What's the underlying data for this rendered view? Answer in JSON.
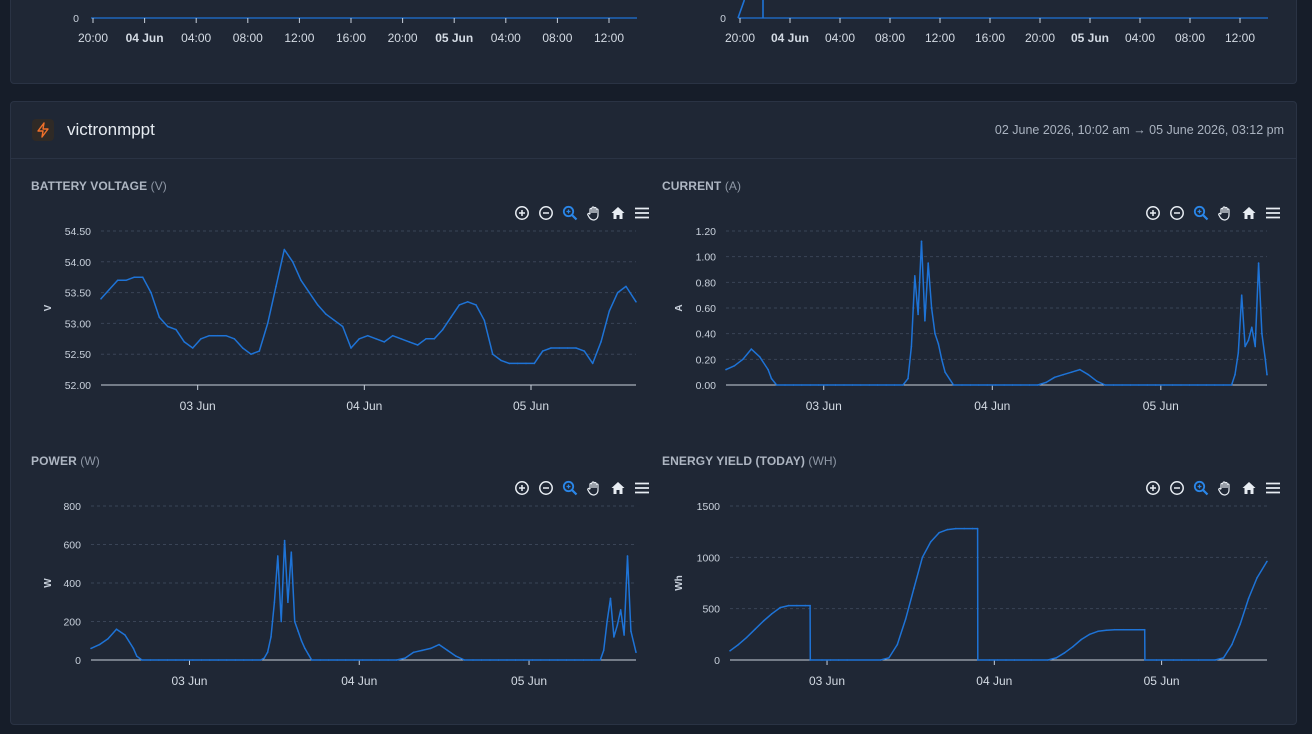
{
  "top_panels": {
    "left": {
      "y_tick": "0",
      "x_ticks": [
        "20:00",
        "04 Jun",
        "04:00",
        "08:00",
        "12:00",
        "16:00",
        "20:00",
        "05 Jun",
        "04:00",
        "08:00",
        "12:00"
      ],
      "bold_ticks": [
        "04 Jun",
        "05 Jun"
      ]
    },
    "right": {
      "y_tick": "0",
      "x_ticks": [
        "20:00",
        "04 Jun",
        "04:00",
        "08:00",
        "12:00",
        "16:00",
        "20:00",
        "05 Jun",
        "04:00",
        "08:00",
        "12:00"
      ],
      "bold_ticks": [
        "04 Jun",
        "05 Jun"
      ]
    }
  },
  "device": {
    "name": "victronmppt",
    "icon": "lightning-bolt-icon",
    "icon_color": "#f0702a",
    "time_range": "02 June 2026, 10:02 am → 05 June 2026, 03:12 pm"
  },
  "toolbar_icons": [
    "zoom-in-icon",
    "zoom-out-icon",
    "selection-zoom-icon",
    "pan-hand-icon",
    "reset-home-icon",
    "menu-icon"
  ],
  "accent_color": "#1e73d6",
  "charts": {
    "voltage": {
      "title": "BATTERY VOLTAGE",
      "unit": "(V)"
    },
    "current": {
      "title": "CURRENT",
      "unit": "(A)"
    },
    "power": {
      "title": "POWER",
      "unit": "(W)"
    },
    "energy": {
      "title": "ENERGY YIELD (TODAY)",
      "unit": "(WH)"
    }
  },
  "chart_data": [
    {
      "id": "voltage",
      "type": "line",
      "title": "BATTERY VOLTAGE (V)",
      "ylabel": "V",
      "ylim": [
        52.0,
        54.5
      ],
      "yticks": [
        "52.00",
        "52.50",
        "53.00",
        "53.50",
        "54.00",
        "54.50"
      ],
      "xlim": [
        0,
        3.21
      ],
      "xticks": [
        {
          "x": 0.58,
          "label": "03 Jun"
        },
        {
          "x": 1.58,
          "label": "04 Jun"
        },
        {
          "x": 2.58,
          "label": "05 Jun"
        }
      ],
      "grid": true,
      "x": [
        0.0,
        0.05,
        0.1,
        0.15,
        0.2,
        0.25,
        0.3,
        0.35,
        0.4,
        0.45,
        0.5,
        0.55,
        0.6,
        0.65,
        0.7,
        0.75,
        0.8,
        0.85,
        0.9,
        0.95,
        1.0,
        1.05,
        1.1,
        1.15,
        1.2,
        1.25,
        1.3,
        1.35,
        1.4,
        1.45,
        1.5,
        1.55,
        1.6,
        1.65,
        1.7,
        1.75,
        1.8,
        1.85,
        1.9,
        1.95,
        2.0,
        2.05,
        2.1,
        2.15,
        2.2,
        2.25,
        2.3,
        2.35,
        2.4,
        2.45,
        2.5,
        2.55,
        2.6,
        2.65,
        2.7,
        2.75,
        2.8,
        2.85,
        2.9,
        2.95,
        3.0,
        3.05,
        3.1,
        3.15,
        3.21
      ],
      "y": [
        53.4,
        53.55,
        53.7,
        53.7,
        53.75,
        53.75,
        53.5,
        53.1,
        52.95,
        52.9,
        52.7,
        52.6,
        52.75,
        52.8,
        52.8,
        52.8,
        52.75,
        52.6,
        52.5,
        52.55,
        53.0,
        53.6,
        54.2,
        54.0,
        53.7,
        53.5,
        53.3,
        53.15,
        53.05,
        52.95,
        52.6,
        52.75,
        52.8,
        52.75,
        52.7,
        52.8,
        52.75,
        52.7,
        52.65,
        52.75,
        52.75,
        52.9,
        53.1,
        53.3,
        53.35,
        53.3,
        53.05,
        52.5,
        52.4,
        52.35,
        52.35,
        52.35,
        52.35,
        52.55,
        52.6,
        52.6,
        52.6,
        52.6,
        52.55,
        52.35,
        52.7,
        53.2,
        53.5,
        53.6,
        53.35
      ]
    },
    {
      "id": "current",
      "type": "line",
      "title": "CURRENT (A)",
      "ylabel": "A",
      "ylim": [
        0,
        1.2
      ],
      "yticks": [
        "0.00",
        "0.20",
        "0.40",
        "0.60",
        "0.80",
        "1.00",
        "1.20"
      ],
      "xlim": [
        0,
        3.21
      ],
      "xticks": [
        {
          "x": 0.58,
          "label": "03 Jun"
        },
        {
          "x": 1.58,
          "label": "04 Jun"
        },
        {
          "x": 2.58,
          "label": "05 Jun"
        }
      ],
      "grid": true,
      "x": [
        0.0,
        0.05,
        0.1,
        0.15,
        0.2,
        0.25,
        0.27,
        0.3,
        0.35,
        0.4,
        0.45,
        0.5,
        0.55,
        0.6,
        0.65,
        0.7,
        0.75,
        0.8,
        0.85,
        0.9,
        0.95,
        1.0,
        1.05,
        1.08,
        1.1,
        1.12,
        1.14,
        1.16,
        1.18,
        1.2,
        1.22,
        1.24,
        1.26,
        1.28,
        1.3,
        1.35,
        1.4,
        1.45,
        1.5,
        1.55,
        1.6,
        1.65,
        1.7,
        1.75,
        1.8,
        1.85,
        1.9,
        1.95,
        2.0,
        2.05,
        2.1,
        2.15,
        2.2,
        2.25,
        2.3,
        2.35,
        2.4,
        2.45,
        2.5,
        2.55,
        2.6,
        2.65,
        2.7,
        2.75,
        2.8,
        2.85,
        2.9,
        2.95,
        3.0,
        3.02,
        3.04,
        3.06,
        3.08,
        3.1,
        3.12,
        3.14,
        3.16,
        3.18,
        3.2,
        3.21
      ],
      "y": [
        0.12,
        0.15,
        0.2,
        0.28,
        0.22,
        0.12,
        0.05,
        0.0,
        0.0,
        0.0,
        0.0,
        0.0,
        0.0,
        0.0,
        0.0,
        0.0,
        0.0,
        0.0,
        0.0,
        0.0,
        0.0,
        0.0,
        0.0,
        0.05,
        0.3,
        0.85,
        0.55,
        1.12,
        0.5,
        0.95,
        0.6,
        0.4,
        0.32,
        0.2,
        0.1,
        0.0,
        0.0,
        0.0,
        0.0,
        0.0,
        0.0,
        0.0,
        0.0,
        0.0,
        0.0,
        0.0,
        0.02,
        0.06,
        0.08,
        0.1,
        0.12,
        0.08,
        0.03,
        0.0,
        0.0,
        0.0,
        0.0,
        0.0,
        0.0,
        0.0,
        0.0,
        0.0,
        0.0,
        0.0,
        0.0,
        0.0,
        0.0,
        0.0,
        0.0,
        0.08,
        0.25,
        0.7,
        0.3,
        0.35,
        0.45,
        0.3,
        0.95,
        0.4,
        0.2,
        0.08
      ]
    },
    {
      "id": "power",
      "type": "line",
      "title": "POWER (W)",
      "ylabel": "W",
      "ylim": [
        0,
        800
      ],
      "yticks": [
        "0",
        "200",
        "400",
        "600",
        "800"
      ],
      "xlim": [
        0,
        3.21
      ],
      "xticks": [
        {
          "x": 0.58,
          "label": "03 Jun"
        },
        {
          "x": 1.58,
          "label": "04 Jun"
        },
        {
          "x": 2.58,
          "label": "05 Jun"
        }
      ],
      "grid": true,
      "x": [
        0.0,
        0.05,
        0.1,
        0.15,
        0.2,
        0.25,
        0.27,
        0.3,
        0.35,
        0.4,
        0.45,
        0.5,
        0.55,
        0.6,
        0.65,
        0.7,
        0.75,
        0.8,
        0.85,
        0.9,
        0.95,
        1.0,
        1.02,
        1.04,
        1.06,
        1.08,
        1.1,
        1.12,
        1.14,
        1.16,
        1.18,
        1.2,
        1.22,
        1.24,
        1.26,
        1.28,
        1.3,
        1.35,
        1.4,
        1.45,
        1.5,
        1.55,
        1.6,
        1.65,
        1.7,
        1.75,
        1.8,
        1.85,
        1.9,
        1.95,
        2.0,
        2.05,
        2.1,
        2.15,
        2.2,
        2.25,
        2.3,
        2.35,
        2.4,
        2.45,
        2.5,
        2.55,
        2.6,
        2.65,
        2.7,
        2.75,
        2.8,
        2.85,
        2.9,
        2.95,
        3.0,
        3.02,
        3.04,
        3.06,
        3.08,
        3.1,
        3.12,
        3.14,
        3.16,
        3.18,
        3.21
      ],
      "y": [
        60,
        80,
        110,
        160,
        130,
        60,
        20,
        0,
        0,
        0,
        0,
        0,
        0,
        0,
        0,
        0,
        0,
        0,
        0,
        0,
        0,
        0,
        10,
        40,
        120,
        300,
        540,
        200,
        620,
        300,
        560,
        200,
        150,
        100,
        60,
        30,
        0,
        0,
        0,
        0,
        0,
        0,
        0,
        0,
        0,
        0,
        0,
        10,
        40,
        50,
        60,
        80,
        50,
        20,
        0,
        0,
        0,
        0,
        0,
        0,
        0,
        0,
        0,
        0,
        0,
        0,
        0,
        0,
        0,
        0,
        0,
        50,
        200,
        320,
        120,
        180,
        260,
        130,
        540,
        150,
        40
      ]
    },
    {
      "id": "energy",
      "type": "line",
      "title": "ENERGY YIELD (TODAY) (WH)",
      "ylabel": "Wh",
      "ylim": [
        0,
        1500
      ],
      "yticks": [
        "0",
        "500",
        "1000",
        "1500"
      ],
      "xlim": [
        0,
        3.21
      ],
      "xticks": [
        {
          "x": 0.58,
          "label": "03 Jun"
        },
        {
          "x": 1.58,
          "label": "04 Jun"
        },
        {
          "x": 2.58,
          "label": "05 Jun"
        }
      ],
      "grid": true,
      "x": [
        0.0,
        0.05,
        0.1,
        0.15,
        0.2,
        0.25,
        0.3,
        0.35,
        0.4,
        0.45,
        0.479,
        0.48,
        0.55,
        0.6,
        0.65,
        0.7,
        0.9,
        0.95,
        1.0,
        1.05,
        1.1,
        1.15,
        1.2,
        1.25,
        1.3,
        1.35,
        1.4,
        1.45,
        1.48,
        1.481,
        1.55,
        1.6,
        1.65,
        1.7,
        1.8,
        1.9,
        1.95,
        2.0,
        2.05,
        2.1,
        2.15,
        2.2,
        2.25,
        2.3,
        2.35,
        2.45,
        2.479,
        2.48,
        2.55,
        2.6,
        2.65,
        2.7,
        2.8,
        2.9,
        2.95,
        3.0,
        3.05,
        3.1,
        3.15,
        3.21
      ],
      "y": [
        90,
        150,
        220,
        300,
        380,
        450,
        510,
        530,
        530,
        530,
        530,
        0,
        0,
        0,
        0,
        0,
        0,
        20,
        150,
        400,
        700,
        1000,
        1150,
        1240,
        1270,
        1280,
        1280,
        1280,
        1280,
        0,
        0,
        0,
        0,
        0,
        0,
        0,
        20,
        70,
        130,
        200,
        250,
        280,
        290,
        295,
        295,
        295,
        295,
        0,
        0,
        0,
        0,
        0,
        0,
        0,
        20,
        150,
        350,
        600,
        800,
        960
      ]
    }
  ]
}
